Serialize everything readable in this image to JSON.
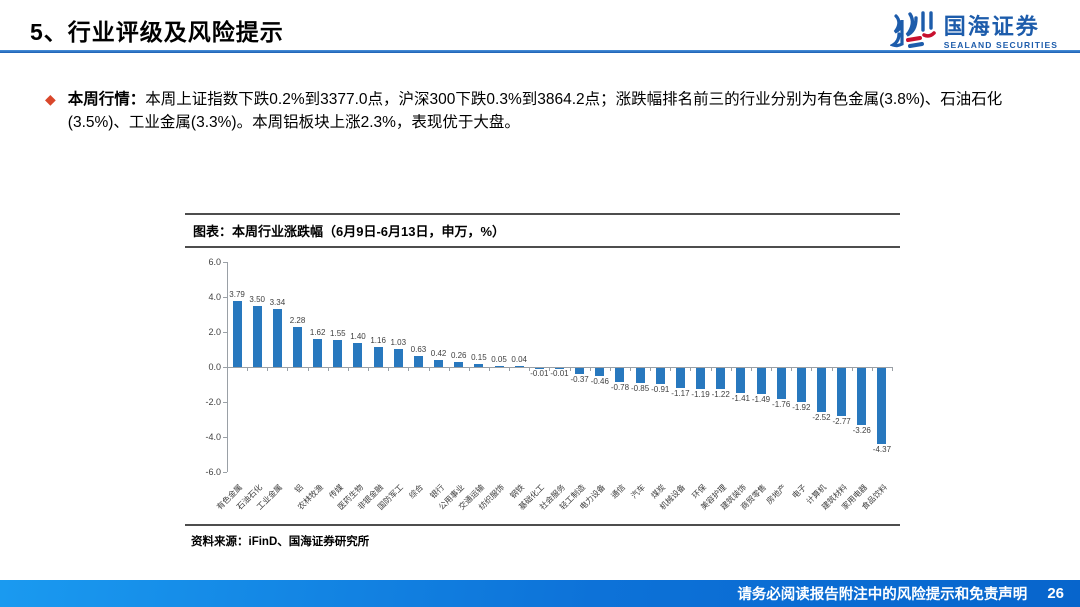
{
  "header": {
    "title": "5、行业评级及风险提示",
    "logo": {
      "name_cn": "国海证券",
      "name_en": "SEALAND SECURITIES"
    }
  },
  "bullet": {
    "label": "本周行情：",
    "text": "本周上证指数下跌0.2%到3377.0点，沪深300下跌0.3%到3864.2点；涨跌幅排名前三的行业分别为有色金属(3.8%)、石油石化(3.5%)、工业金属(3.3%)。本周铝板块上涨2.3%，表现优于大盘。"
  },
  "chart": {
    "title": "图表：本周行业涨跌幅（6月9日-6月13日，申万，%）",
    "source": "资料来源：iFinD、国海证券研究所"
  },
  "chart_data": {
    "type": "bar",
    "title": "本周行业涨跌幅（6月9日-6月13日，申万，%）",
    "categories": [
      "有色金属",
      "石油石化",
      "工业金属",
      "铝",
      "农林牧渔",
      "传媒",
      "医药生物",
      "非银金融",
      "国防军工",
      "综合",
      "银行",
      "公用事业",
      "交通运输",
      "纺织服饰",
      "钢铁",
      "基础化工",
      "社会服务",
      "轻工制造",
      "电力设备",
      "通信",
      "汽车",
      "煤炭",
      "机械设备",
      "环保",
      "美容护理",
      "建筑装饰",
      "商贸零售",
      "房地产",
      "电子",
      "计算机",
      "建筑材料",
      "家用电器",
      "食品饮料"
    ],
    "values": [
      3.79,
      3.5,
      3.34,
      2.28,
      1.62,
      1.55,
      1.4,
      1.16,
      1.03,
      0.63,
      0.42,
      0.26,
      0.15,
      0.05,
      0.04,
      -0.01,
      -0.01,
      -0.37,
      -0.46,
      -0.78,
      -0.85,
      -0.91,
      -1.17,
      -1.19,
      -1.22,
      -1.41,
      -1.49,
      -1.76,
      -1.92,
      -2.52,
      -2.77,
      -3.26,
      -4.37
    ],
    "ylim": [
      -6.0,
      6.0
    ],
    "yticks": [
      6.0,
      4.0,
      2.0,
      0.0,
      -2.0,
      -4.0,
      -6.0
    ],
    "ytick_labels": [
      "6.0",
      "4.0",
      "2.0",
      "0.0",
      "-2.0",
      "-4.0",
      "-6.0"
    ],
    "xlabel": "",
    "ylabel": "",
    "grid": false,
    "legend": false,
    "bar_color": "#2878be"
  },
  "footer": {
    "disclaimer": "请务必阅读报告附注中的风险提示和免责声明",
    "page": "26"
  },
  "colors": {
    "accent_blue": "#1d5cab",
    "rule_blue": "#1a5fb4",
    "bullet_diamond": "#d9472b",
    "bar_blue": "#2878be",
    "footer_blue_left": "#1a9af0",
    "footer_blue_right": "#0765cc"
  }
}
